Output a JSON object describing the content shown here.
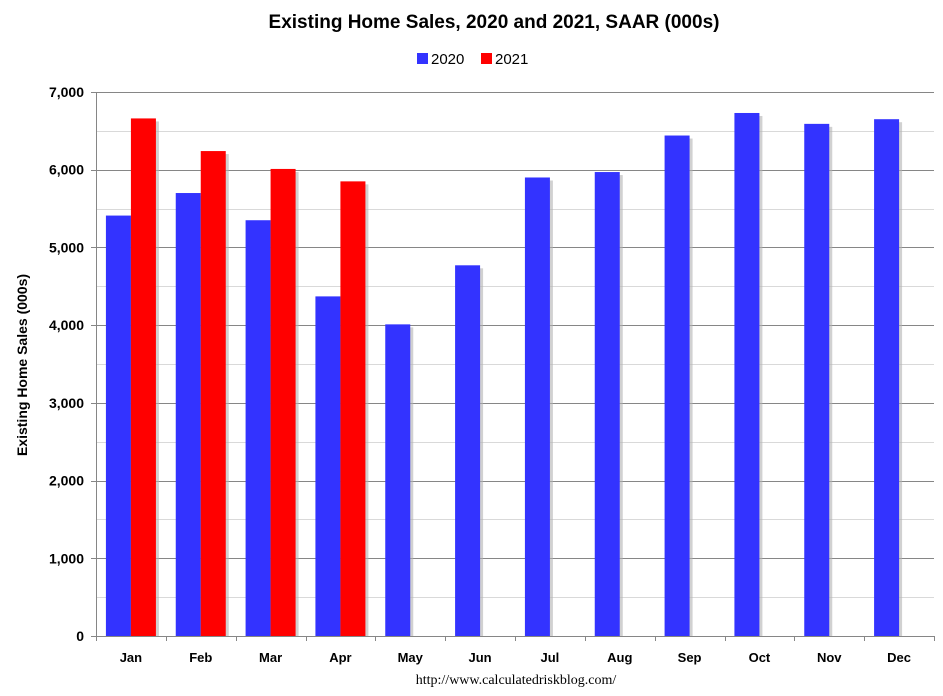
{
  "chart_data": {
    "type": "bar",
    "title": "Existing Home Sales,  2020 and 2021, SAAR (000s)",
    "ylabel": "Existing Home Sales (000s)",
    "xlabel": "",
    "categories": [
      "Jan",
      "Feb",
      "Mar",
      "Apr",
      "May",
      "Jun",
      "Jul",
      "Aug",
      "Sep",
      "Oct",
      "Nov",
      "Dec"
    ],
    "series": [
      {
        "name": "2020",
        "color": "#3333ff",
        "values": [
          5410,
          5700,
          5350,
          4370,
          4010,
          4770,
          5900,
          5970,
          6440,
          6730,
          6590,
          6650
        ]
      },
      {
        "name": "2021",
        "color": "#ff0000",
        "values": [
          6660,
          6240,
          6010,
          5850,
          null,
          null,
          null,
          null,
          null,
          null,
          null,
          null
        ]
      }
    ],
    "ylim": [
      0,
      7000
    ],
    "yticks": [
      0,
      1000,
      2000,
      3000,
      4000,
      5000,
      6000,
      7000
    ],
    "ytick_labels": [
      "0",
      "1,000",
      "2,000",
      "3,000",
      "4,000",
      "5,000",
      "6,000",
      "7,000"
    ],
    "minor_grid_step": 500,
    "grid": true,
    "legend_position": "top-center"
  },
  "source_text": "http://www.calculatedriskblog.com/"
}
